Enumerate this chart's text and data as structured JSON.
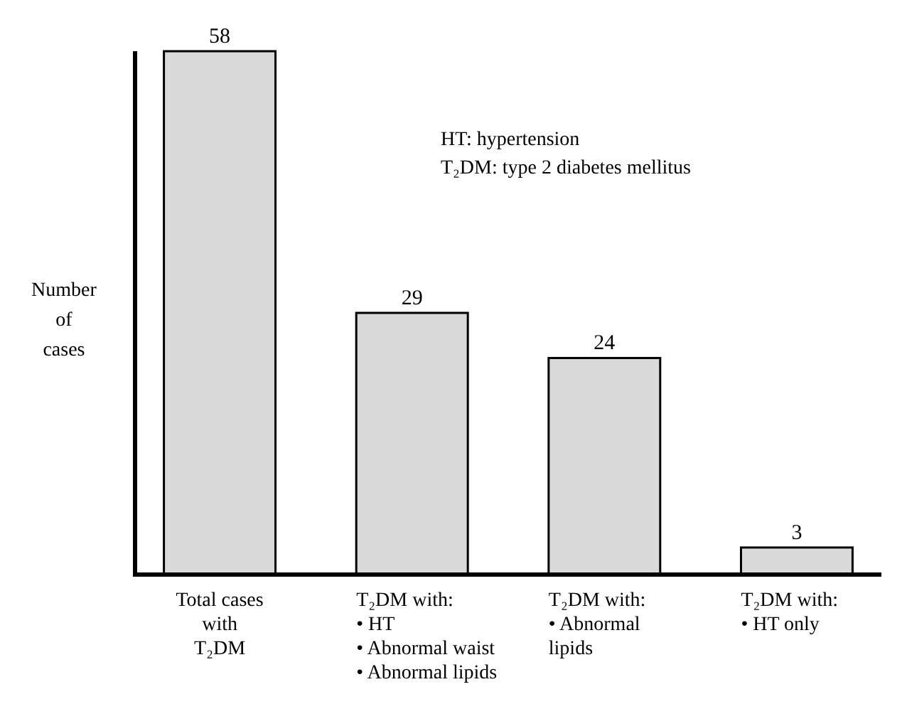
{
  "chart_data": {
    "type": "bar",
    "ylabel": "Number\nof\ncases",
    "categories": [
      "Total cases\nwith\nT₂DM",
      "T₂DM with:\n• HT\n• Abnormal waist\n• Abnormal lipids",
      "T₂DM with:\n• Abnormal\nlipids",
      "T₂DM with:\n• HT only"
    ],
    "values": [
      58,
      29,
      24,
      3
    ],
    "color": "#d9d9d9",
    "data_labels": true,
    "annotations": [
      "HT: hypertension",
      "T₂DM: type 2 diabetes mellitus"
    ]
  }
}
